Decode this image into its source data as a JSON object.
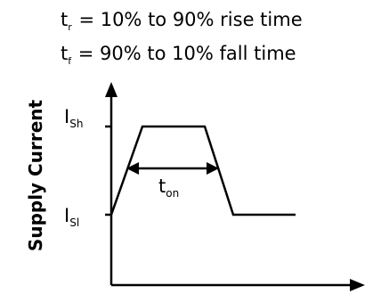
{
  "definitions": {
    "rise": {
      "symbol": "t",
      "subscript": "r",
      "text": " = 10% to 90% rise time"
    },
    "fall": {
      "symbol": "t",
      "subscript": "f",
      "text": " = 90% to 10% fall time"
    }
  },
  "axis": {
    "y_title": "Supply Current"
  },
  "levels": {
    "high": {
      "symbol": "I",
      "subscript": "Sh"
    },
    "low": {
      "symbol": "I",
      "subscript": "Sl"
    }
  },
  "on_time": {
    "symbol": "t",
    "subscript": "on"
  },
  "colors": {
    "ink": "#000000",
    "background": "#ffffff"
  }
}
